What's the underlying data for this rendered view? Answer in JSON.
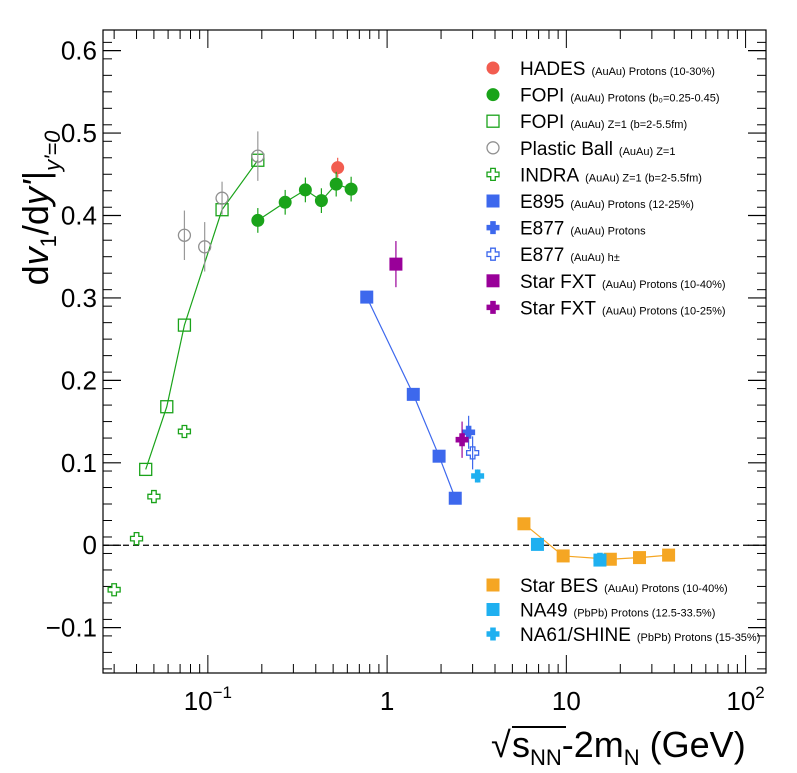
{
  "chart_data": {
    "type": "scatter",
    "title": "",
    "xlabel": "√s_NN - 2m_N (GeV)",
    "xlabel_parts": {
      "root": "√",
      "s": "s",
      "s_sub": "NN",
      "mid": "-2m",
      "m_sub": "N",
      "unit": " (GeV)"
    },
    "ylabel": "dv1/dy'|y'=0",
    "ylabel_parts": {
      "d": "d",
      "v": "v",
      "v_sub": "1",
      "slash": "/d",
      "y": "y'",
      "sub": "y'=0"
    },
    "xscale": "log",
    "xlim": [
      0.026,
      130
    ],
    "ylim": [
      -0.155,
      0.625
    ],
    "x_ticks": [
      {
        "value": 0.1,
        "base": "10",
        "exp": "−1"
      },
      {
        "value": 1,
        "base": "1",
        "exp": ""
      },
      {
        "value": 10,
        "base": "10",
        "exp": ""
      },
      {
        "value": 100,
        "base": "10",
        "exp": "2"
      }
    ],
    "y_ticks": [
      {
        "value": -0.1,
        "label": "−0.1"
      },
      {
        "value": 0,
        "label": "0"
      },
      {
        "value": 0.1,
        "label": "0.1"
      },
      {
        "value": 0.2,
        "label": "0.2"
      },
      {
        "value": 0.3,
        "label": "0.3"
      },
      {
        "value": 0.4,
        "label": "0.4"
      },
      {
        "value": 0.5,
        "label": "0.5"
      },
      {
        "value": 0.6,
        "label": "0.6"
      }
    ],
    "zero_line": {
      "value": 0,
      "style": "dashed"
    },
    "series": [
      {
        "name": "HADES",
        "desc": "(AuAu) Protons (10-30%)",
        "marker": "circle",
        "filled": true,
        "color": "#f25d50",
        "legend_group": "top",
        "points": [
          {
            "x": 0.53,
            "y": 0.458,
            "err": 0.012
          }
        ]
      },
      {
        "name": "FOPI",
        "desc": "(AuAu) Protons (b₀=0.25-0.45)",
        "marker": "circle",
        "filled": true,
        "color": "#1aa31a",
        "connect": true,
        "legend_group": "top",
        "points": [
          {
            "x": 0.19,
            "y": 0.394,
            "err": 0.015
          },
          {
            "x": 0.27,
            "y": 0.416,
            "err": 0.015
          },
          {
            "x": 0.35,
            "y": 0.431,
            "err": 0.015
          },
          {
            "x": 0.43,
            "y": 0.418,
            "err": 0.015
          },
          {
            "x": 0.52,
            "y": 0.438,
            "err": 0.015
          },
          {
            "x": 0.63,
            "y": 0.432,
            "err": 0.015
          }
        ]
      },
      {
        "name": "FOPI",
        "desc": "(AuAu) Z=1 (b=2-5.5fm)",
        "marker": "square",
        "filled": false,
        "color": "#1aa31a",
        "connect": true,
        "legend_group": "top",
        "points": [
          {
            "x": 0.045,
            "y": 0.092,
            "err": 0
          },
          {
            "x": 0.059,
            "y": 0.168,
            "err": 0
          },
          {
            "x": 0.074,
            "y": 0.267,
            "err": 0
          },
          {
            "x": 0.12,
            "y": 0.407,
            "err": 0
          },
          {
            "x": 0.19,
            "y": 0.467,
            "err": 0
          }
        ]
      },
      {
        "name": "Plastic Ball",
        "desc": "(AuAu) Z=1",
        "marker": "circle",
        "filled": false,
        "color": "#909090",
        "legend_group": "top",
        "points": [
          {
            "x": 0.074,
            "y": 0.376,
            "err": 0.03
          },
          {
            "x": 0.096,
            "y": 0.362,
            "err": 0.03
          },
          {
            "x": 0.12,
            "y": 0.421,
            "err": 0.02
          },
          {
            "x": 0.19,
            "y": 0.472,
            "err": 0.03
          }
        ]
      },
      {
        "name": "INDRA",
        "desc": "(AuAu) Z=1 (b=2-5.5fm)",
        "marker": "cross",
        "filled": false,
        "color": "#1aa31a",
        "legend_group": "top",
        "points": [
          {
            "x": 0.03,
            "y": -0.054,
            "err": 0
          },
          {
            "x": 0.04,
            "y": 0.008,
            "err": 0
          },
          {
            "x": 0.05,
            "y": 0.059,
            "err": 0
          },
          {
            "x": 0.074,
            "y": 0.138,
            "err": 0
          }
        ]
      },
      {
        "name": "E895",
        "desc": "(AuAu) Protons (12-25%)",
        "marker": "square",
        "filled": true,
        "color": "#3d68ed",
        "connect": true,
        "legend_group": "top",
        "points": [
          {
            "x": 0.77,
            "y": 0.301,
            "err": 0.005
          },
          {
            "x": 1.4,
            "y": 0.183,
            "err": 0.005
          },
          {
            "x": 1.95,
            "y": 0.108,
            "err": 0.005
          },
          {
            "x": 2.4,
            "y": 0.057,
            "err": 0.005
          }
        ]
      },
      {
        "name": "E877",
        "desc": "(AuAu) Protons",
        "marker": "cross",
        "filled": true,
        "color": "#3d68ed",
        "legend_group": "top",
        "points": [
          {
            "x": 2.85,
            "y": 0.137,
            "err": 0.02
          }
        ]
      },
      {
        "name": "E877",
        "desc": "(AuAu) h±",
        "marker": "cross",
        "filled": false,
        "color": "#3d68ed",
        "legend_group": "top",
        "points": [
          {
            "x": 3.0,
            "y": 0.112,
            "err": 0.02
          }
        ]
      },
      {
        "name": "Star FXT",
        "desc": "(AuAu) Protons (10-40%)",
        "marker": "square",
        "filled": true,
        "color": "#990099",
        "legend_group": "top",
        "points": [
          {
            "x": 1.12,
            "y": 0.341,
            "err": 0.028
          }
        ]
      },
      {
        "name": "Star FXT",
        "desc": "(AuAu) Protons (10-25%)",
        "marker": "cross",
        "filled": true,
        "color": "#990099",
        "legend_group": "top",
        "points": [
          {
            "x": 2.62,
            "y": 0.128,
            "err": 0.022
          }
        ]
      },
      {
        "name": "Star BES",
        "desc": "(AuAu) Protons (10-40%)",
        "marker": "square",
        "filled": true,
        "color": "#f5a623",
        "connect": true,
        "legend_group": "bottom",
        "points": [
          {
            "x": 5.8,
            "y": 0.026,
            "err": 0
          },
          {
            "x": 9.6,
            "y": -0.013,
            "err": 0
          },
          {
            "x": 17.6,
            "y": -0.017,
            "err": 0
          },
          {
            "x": 25.6,
            "y": -0.015,
            "err": 0
          },
          {
            "x": 37.2,
            "y": -0.012,
            "err": 0
          }
        ]
      },
      {
        "name": "NA49",
        "desc": "(PbPb) Protons (12.5-33.5%)",
        "marker": "square",
        "filled": true,
        "color": "#1fb0f0",
        "legend_group": "bottom",
        "points": [
          {
            "x": 6.9,
            "y": 0.001,
            "err": 0
          },
          {
            "x": 15.4,
            "y": -0.018,
            "err": 0
          }
        ]
      },
      {
        "name": "NA61/SHINE",
        "desc": "(PbPb) Protons (15-35%)",
        "marker": "cross",
        "filled": true,
        "color": "#1fb0f0",
        "legend_group": "bottom",
        "points": [
          {
            "x": 3.2,
            "y": 0.084,
            "err": 0.008
          },
          {
            "x": 15.4,
            "y": -0.017,
            "err": 0.006
          }
        ]
      }
    ]
  }
}
